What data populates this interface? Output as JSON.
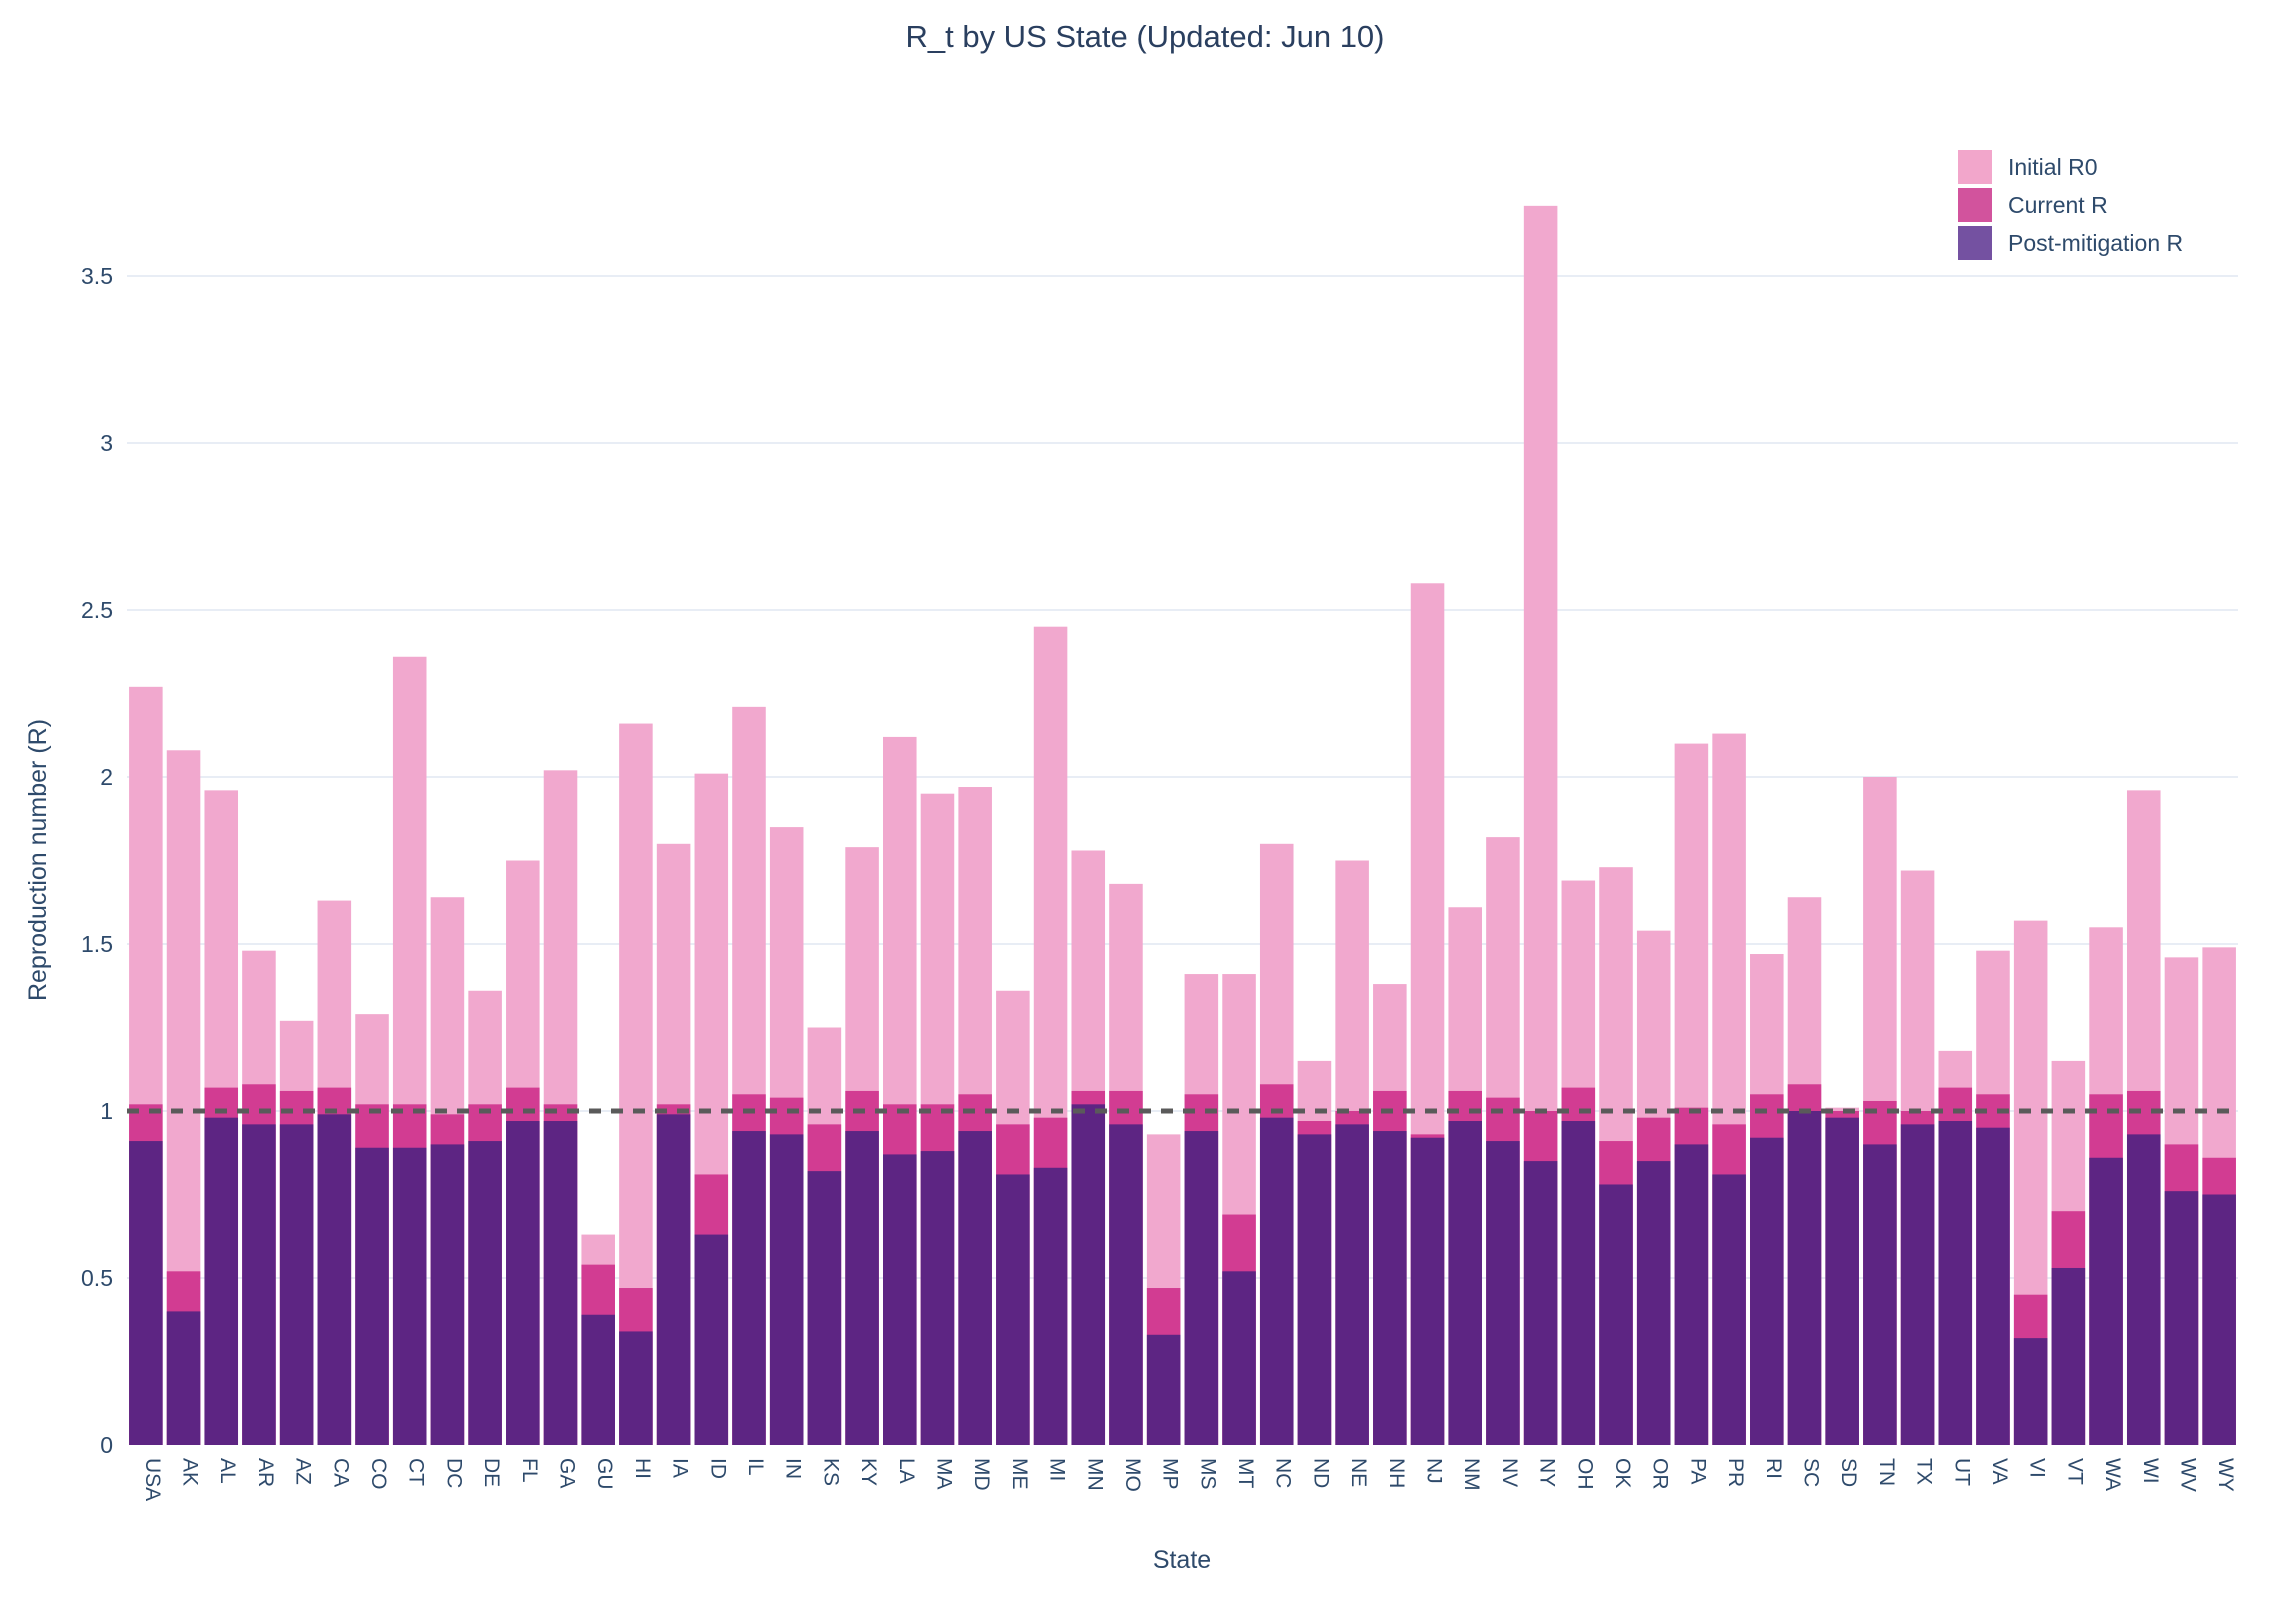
{
  "title": "R_t by US State (Updated: Jun 10)",
  "colors": {
    "background": "#ffffff",
    "title_text": "#2a3f5f",
    "axis_text": "#2e4a6b",
    "gridline": "#e8edf5",
    "reference_line": "#5a5a5a",
    "initial_r0": "#f1a8ce",
    "current_r": "#d23c92",
    "post_mitigation_r": "#5d2583",
    "legend_initial_r0": "#f2a6cb",
    "legend_current_r": "#d2539d",
    "legend_post_mitigation_r": "#7451a1"
  },
  "chart_data": {
    "type": "bar",
    "barmode": "overlay",
    "title": "R_t by US State (Updated: Jun 10)",
    "xlabel": "State",
    "ylabel": "Reproduction number (R)",
    "ylim": [
      0,
      3.99
    ],
    "ytick_values": [
      0,
      0.5,
      1,
      1.5,
      2,
      2.5,
      3,
      3.5
    ],
    "ytick_labels": [
      "0",
      "0.5",
      "1",
      "1.5",
      "2",
      "2.5",
      "3",
      "3.5"
    ],
    "grid": true,
    "legend_position": "top-right",
    "reference_line": {
      "y": 1,
      "style": "dotted",
      "color": "#5a5a5a"
    },
    "categories": [
      "USA",
      "AK",
      "AL",
      "AR",
      "AZ",
      "CA",
      "CO",
      "CT",
      "DC",
      "DE",
      "FL",
      "GA",
      "GU",
      "HI",
      "IA",
      "ID",
      "IL",
      "IN",
      "KS",
      "KY",
      "LA",
      "MA",
      "MD",
      "ME",
      "MI",
      "MN",
      "MO",
      "MP",
      "MS",
      "MT",
      "NC",
      "ND",
      "NE",
      "NH",
      "NJ",
      "NM",
      "NV",
      "NY",
      "OH",
      "OK",
      "OR",
      "PA",
      "PR",
      "RI",
      "SC",
      "SD",
      "TN",
      "TX",
      "UT",
      "VA",
      "VI",
      "VT",
      "WA",
      "WI",
      "WV",
      "WY"
    ],
    "series": [
      {
        "name": "Initial R0",
        "color": "#f1a8ce",
        "legend_color": "#f2a6cb",
        "values": [
          2.27,
          2.08,
          1.96,
          1.48,
          1.27,
          1.63,
          1.29,
          2.36,
          1.64,
          1.36,
          1.75,
          2.02,
          0.63,
          2.16,
          1.8,
          2.01,
          2.21,
          1.85,
          1.25,
          1.79,
          2.12,
          1.95,
          1.97,
          1.36,
          2.45,
          1.78,
          1.68,
          0.93,
          1.41,
          1.41,
          1.8,
          1.15,
          1.75,
          1.38,
          2.58,
          1.61,
          1.82,
          3.71,
          1.69,
          1.73,
          1.54,
          2.1,
          2.13,
          1.47,
          1.64,
          1.01,
          2.0,
          1.72,
          1.18,
          1.48,
          1.57,
          1.15,
          1.55,
          1.96,
          1.46,
          1.49
        ]
      },
      {
        "name": "Current R",
        "color": "#d23c92",
        "legend_color": "#d2539d",
        "values": [
          1.02,
          0.52,
          1.07,
          1.08,
          1.06,
          1.07,
          1.02,
          1.02,
          0.99,
          1.02,
          1.07,
          1.02,
          0.54,
          0.47,
          1.02,
          0.81,
          1.05,
          1.04,
          0.96,
          1.06,
          1.02,
          1.02,
          1.05,
          0.96,
          0.98,
          1.06,
          1.06,
          0.47,
          1.05,
          0.69,
          1.08,
          0.97,
          1.0,
          1.06,
          0.93,
          1.06,
          1.04,
          1.0,
          1.07,
          0.91,
          0.98,
          1.01,
          0.96,
          1.05,
          1.08,
          1.0,
          1.03,
          1.0,
          1.07,
          1.05,
          0.45,
          0.7,
          1.05,
          1.06,
          0.9,
          0.86
        ]
      },
      {
        "name": "Post-mitigation R",
        "color": "#5d2583",
        "legend_color": "#7451a1",
        "values": [
          0.91,
          0.4,
          0.98,
          0.96,
          0.96,
          0.99,
          0.89,
          0.89,
          0.9,
          0.91,
          0.97,
          0.97,
          0.39,
          0.34,
          0.99,
          0.63,
          0.94,
          0.93,
          0.82,
          0.94,
          0.87,
          0.88,
          0.94,
          0.81,
          0.83,
          1.02,
          0.96,
          0.33,
          0.94,
          0.52,
          0.98,
          0.93,
          0.96,
          0.94,
          0.92,
          0.97,
          0.91,
          0.85,
          0.97,
          0.78,
          0.85,
          0.9,
          0.81,
          0.92,
          1.0,
          0.98,
          0.9,
          0.96,
          0.97,
          0.95,
          0.32,
          0.53,
          0.86,
          0.93,
          0.76,
          0.75
        ]
      }
    ]
  }
}
